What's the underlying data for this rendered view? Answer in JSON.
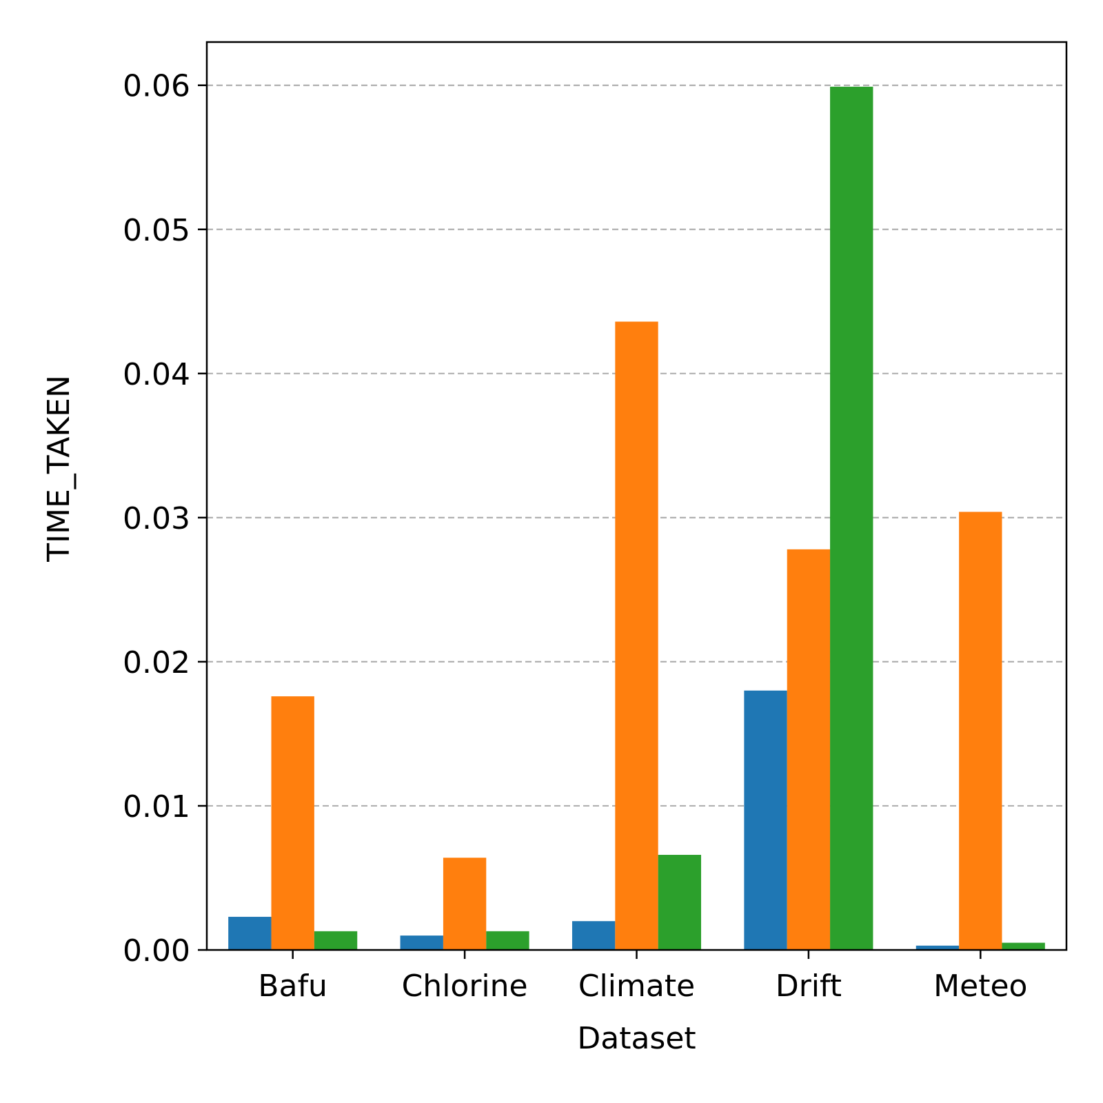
{
  "chart_data": {
    "type": "bar",
    "title": "",
    "xlabel": "Dataset",
    "ylabel": "TIME_TAKEN",
    "categories": [
      "Bafu",
      "Chlorine",
      "Climate",
      "Drift",
      "Meteo"
    ],
    "ylim": [
      0,
      0.063
    ],
    "yticks": [
      0.0,
      0.01,
      0.02,
      0.03,
      0.04,
      0.05,
      0.06
    ],
    "ytick_labels": [
      "0.00",
      "0.01",
      "0.02",
      "0.03",
      "0.04",
      "0.05",
      "0.06"
    ],
    "grid": "y-dashed",
    "legend": "none",
    "series": [
      {
        "color": "#1f77b4",
        "values": [
          0.0023,
          0.001,
          0.002,
          0.018,
          0.0003
        ]
      },
      {
        "color": "#ff7f0e",
        "values": [
          0.0176,
          0.0064,
          0.0436,
          0.0278,
          0.0304
        ]
      },
      {
        "color": "#2ca02c",
        "values": [
          0.0013,
          0.0013,
          0.0066,
          0.0599,
          0.0005
        ]
      }
    ]
  }
}
